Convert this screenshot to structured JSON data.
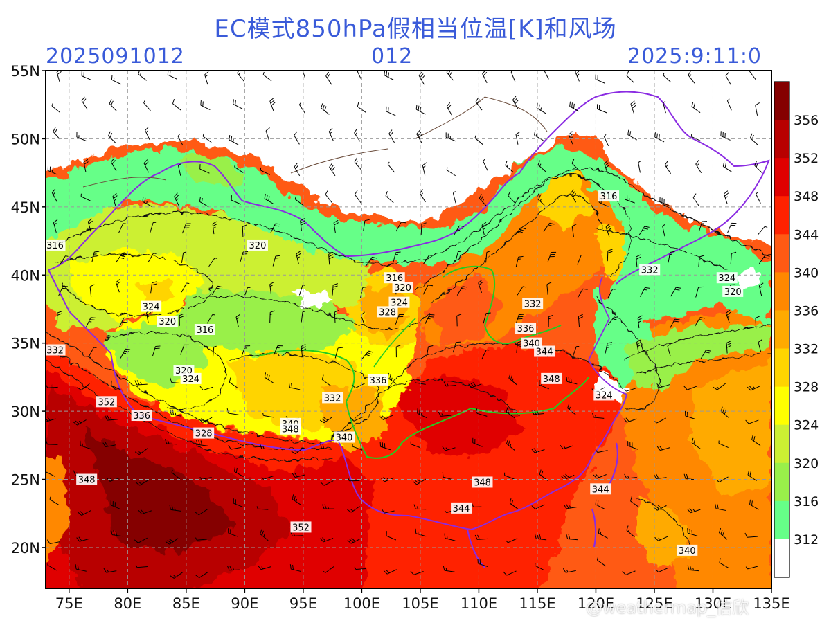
{
  "header": {
    "title": "EC模式850hPa假相当位温[K]和风场",
    "run_time": "2025091012",
    "forecast_hour": "012",
    "valid_time": "2025:9:11:0"
  },
  "map": {
    "lat_labels": [
      "55N",
      "50N",
      "45N",
      "40N",
      "35N",
      "30N",
      "25N",
      "20N"
    ],
    "lon_labels": [
      "75E",
      "80E",
      "85E",
      "90E",
      "95E",
      "100E",
      "105E",
      "110E",
      "115E",
      "120E",
      "125E",
      "130E",
      "135E"
    ],
    "lat_values": [
      55,
      50,
      45,
      40,
      35,
      30,
      25,
      20
    ],
    "lon_values": [
      75,
      80,
      85,
      90,
      95,
      100,
      105,
      110,
      115,
      120,
      125,
      130,
      135
    ],
    "contour_labels": [
      {
        "text": "316",
        "lon": 73.8,
        "lat": 42.2
      },
      {
        "text": "320",
        "lon": 91.1,
        "lat": 42.2
      },
      {
        "text": "316",
        "lon": 121.1,
        "lat": 45.8
      },
      {
        "text": "324",
        "lon": 82.0,
        "lat": 37.7
      },
      {
        "text": "320",
        "lon": 83.4,
        "lat": 36.6
      },
      {
        "text": "316",
        "lon": 86.6,
        "lat": 36.0
      },
      {
        "text": "316",
        "lon": 102.8,
        "lat": 39.8
      },
      {
        "text": "320",
        "lon": 103.5,
        "lat": 39.1
      },
      {
        "text": "324",
        "lon": 103.2,
        "lat": 38.0
      },
      {
        "text": "328",
        "lon": 102.2,
        "lat": 37.3
      },
      {
        "text": "332",
        "lon": 114.6,
        "lat": 37.9
      },
      {
        "text": "336",
        "lon": 114.0,
        "lat": 36.1
      },
      {
        "text": "340",
        "lon": 114.5,
        "lat": 35.0
      },
      {
        "text": "344",
        "lon": 115.6,
        "lat": 34.4
      },
      {
        "text": "348",
        "lon": 116.2,
        "lat": 32.4
      },
      {
        "text": "332",
        "lon": 124.6,
        "lat": 40.4
      },
      {
        "text": "324",
        "lon": 131.2,
        "lat": 39.8
      },
      {
        "text": "320",
        "lon": 131.7,
        "lat": 38.8
      },
      {
        "text": "332",
        "lon": 73.8,
        "lat": 34.5
      },
      {
        "text": "320",
        "lon": 84.8,
        "lat": 33.0
      },
      {
        "text": "324",
        "lon": 85.4,
        "lat": 32.4
      },
      {
        "text": "336",
        "lon": 101.4,
        "lat": 32.3
      },
      {
        "text": "332",
        "lon": 97.5,
        "lat": 31.0
      },
      {
        "text": "352",
        "lon": 78.2,
        "lat": 30.7
      },
      {
        "text": "336",
        "lon": 81.2,
        "lat": 29.7
      },
      {
        "text": "328",
        "lon": 86.5,
        "lat": 28.4
      },
      {
        "text": "340",
        "lon": 93.9,
        "lat": 29.1
      },
      {
        "text": "348",
        "lon": 93.9,
        "lat": 28.7
      },
      {
        "text": "340",
        "lon": 98.5,
        "lat": 28.1
      },
      {
        "text": "324",
        "lon": 120.7,
        "lat": 31.2
      },
      {
        "text": "348",
        "lon": 76.5,
        "lat": 25.0
      },
      {
        "text": "348",
        "lon": 110.3,
        "lat": 24.8
      },
      {
        "text": "344",
        "lon": 120.4,
        "lat": 24.3
      },
      {
        "text": "344",
        "lon": 108.5,
        "lat": 22.9
      },
      {
        "text": "352",
        "lon": 94.8,
        "lat": 21.5
      },
      {
        "text": "340",
        "lon": 127.8,
        "lat": 19.8
      }
    ]
  },
  "colorbar": {
    "labels": [
      "312",
      "316",
      "320",
      "324",
      "328",
      "332",
      "336",
      "340",
      "344",
      "348",
      "352",
      "356"
    ],
    "colors": [
      "#ffffff",
      "#66ff88",
      "#99f04a",
      "#ccf033",
      "#ffff00",
      "#ffd400",
      "#ffaa00",
      "#ff8800",
      "#ff5a14",
      "#ff2200",
      "#e00000",
      "#b80000",
      "#850000"
    ]
  },
  "watermark": "@weathermap_信欣"
}
